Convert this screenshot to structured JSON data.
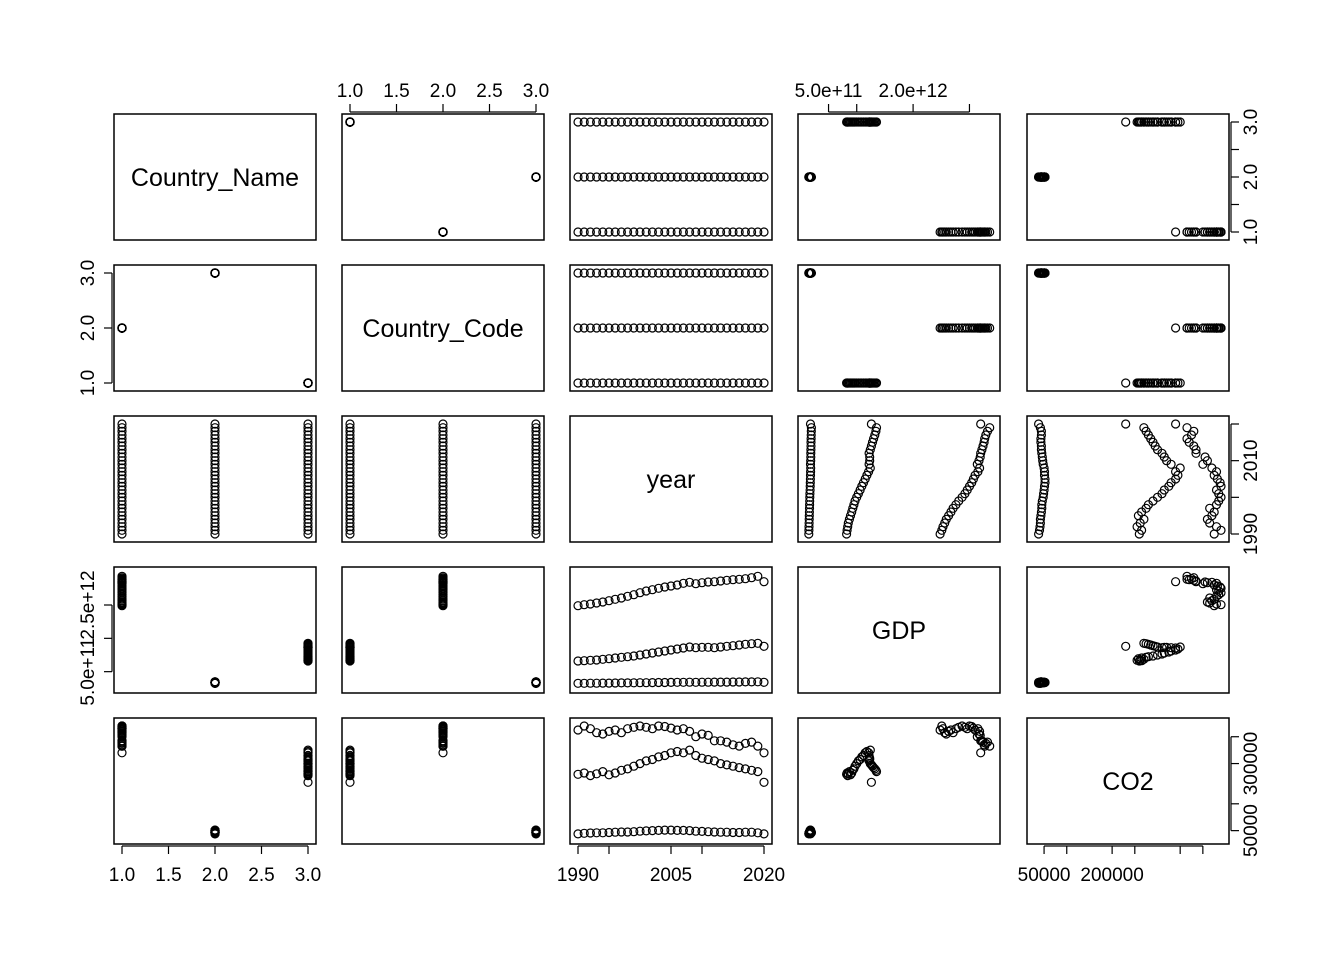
{
  "chart_data": {
    "type": "scatter",
    "subtype": "scatterplot-matrix",
    "variables": [
      "Country_Name",
      "Country_Code",
      "year",
      "GDP",
      "CO2"
    ],
    "axis_ranges": {
      "Country_Name": [
        1,
        3
      ],
      "Country_Code": [
        1,
        3
      ],
      "year": [
        1990,
        2020
      ],
      "GDP": [
        100000000000,
        3400000000000
      ],
      "CO2": [
        30000,
        440000
      ]
    },
    "tick_labels": {
      "Country_Name": [
        "1.0",
        "1.5",
        "2.0",
        "2.5",
        "3.0"
      ],
      "Country_Code": [
        "1.0",
        "2.0",
        "3.0"
      ],
      "year": [
        "1990",
        "2005",
        "2020"
      ],
      "year_right": [
        "1990",
        "2010"
      ],
      "GDP_top": [
        "5.0e+11",
        "2.0e+12"
      ],
      "GDP_left": [
        "5.0e+11",
        "2.5e+12"
      ],
      "CO2_bottom": [
        "50000",
        "200000"
      ],
      "CO2_right": [
        "50000",
        "300000"
      ]
    },
    "grid": false,
    "legend": "none",
    "series": [
      {
        "country_name": 1,
        "country_code": 2,
        "year": [
          1990,
          1991,
          1992,
          1993,
          1994,
          1995,
          1996,
          1997,
          1998,
          1999,
          2000,
          2001,
          2002,
          2003,
          2004,
          2005,
          2006,
          2007,
          2008,
          2009,
          2010,
          2011,
          2012,
          2013,
          2014,
          2015,
          2016,
          2017,
          2018,
          2019,
          2020
        ],
        "gdp": [
          2480000000000.0,
          2510000000000.0,
          2530000000000.0,
          2560000000000.0,
          2590000000000.0,
          2630000000000.0,
          2670000000000.0,
          2710000000000.0,
          2760000000000.0,
          2810000000000.0,
          2870000000000.0,
          2920000000000.0,
          2960000000000.0,
          3000000000000.0,
          3040000000000.0,
          3070000000000.0,
          3100000000000.0,
          3150000000000.0,
          3180000000000.0,
          3140000000000.0,
          3170000000000.0,
          3190000000000.0,
          3200000000000.0,
          3220000000000.0,
          3240000000000.0,
          3260000000000.0,
          3270000000000.0,
          3290000000000.0,
          3320000000000.0,
          3360000000000.0,
          3200000000000.0
        ],
        "co2": [
          425000,
          440000,
          430000,
          415000,
          410000,
          420000,
          425000,
          415000,
          430000,
          435000,
          440000,
          435000,
          430000,
          440000,
          438000,
          432000,
          425000,
          430000,
          420000,
          400000,
          410000,
          405000,
          385000,
          385000,
          380000,
          370000,
          365000,
          375000,
          380000,
          365000,
          340000
        ]
      },
      {
        "country_name": 2,
        "country_code": 3,
        "year": [
          1990,
          1991,
          1992,
          1993,
          1994,
          1995,
          1996,
          1997,
          1998,
          1999,
          2000,
          2001,
          2002,
          2003,
          2004,
          2005,
          2006,
          2007,
          2008,
          2009,
          2010,
          2011,
          2012,
          2013,
          2014,
          2015,
          2016,
          2017,
          2018,
          2019,
          2020
        ],
        "gdp": [
          150000000000.0,
          152000000000.0,
          153000000000.0,
          155000000000.0,
          157000000000.0,
          158000000000.0,
          160000000000.0,
          162000000000.0,
          163000000000.0,
          165000000000.0,
          168000000000.0,
          170000000000.0,
          172000000000.0,
          174000000000.0,
          176000000000.0,
          178000000000.0,
          180000000000.0,
          182000000000.0,
          184000000000.0,
          180000000000.0,
          183000000000.0,
          185000000000.0,
          186000000000.0,
          187000000000.0,
          188000000000.0,
          189000000000.0,
          190000000000.0,
          192000000000.0,
          194000000000.0,
          195000000000.0,
          180000000000.0
        ],
        "co2": [
          38000,
          40000,
          41000,
          42000,
          42000,
          43000,
          44000,
          45000,
          45000,
          46000,
          48000,
          49000,
          50000,
          51000,
          52000,
          52000,
          51000,
          51000,
          50000,
          48000,
          47000,
          46000,
          45000,
          44000,
          44000,
          43000,
          43000,
          44000,
          44000,
          42000,
          38000
        ]
      },
      {
        "country_name": 3,
        "country_code": 1,
        "year": [
          1990,
          1991,
          1992,
          1993,
          1994,
          1995,
          1996,
          1997,
          1998,
          1999,
          2000,
          2001,
          2002,
          2003,
          2004,
          2005,
          2006,
          2007,
          2008,
          2009,
          2010,
          2011,
          2012,
          2013,
          2014,
          2015,
          2016,
          2017,
          2018,
          2019,
          2020
        ],
        "gdp": [
          820000000000.0,
          830000000000.0,
          840000000000.0,
          850000000000.0,
          870000000000.0,
          890000000000.0,
          910000000000.0,
          930000000000.0,
          950000000000.0,
          970000000000.0,
          1000000000000.0,
          1030000000000.0,
          1060000000000.0,
          1090000000000.0,
          1120000000000.0,
          1150000000000.0,
          1180000000000.0,
          1210000000000.0,
          1240000000000.0,
          1220000000000.0,
          1230000000000.0,
          1230000000000.0,
          1220000000000.0,
          1240000000000.0,
          1260000000000.0,
          1280000000000.0,
          1300000000000.0,
          1320000000000.0,
          1340000000000.0,
          1350000000000.0,
          1260000000000.0
        ],
        "co2": [
          260000,
          265000,
          255000,
          262000,
          270000,
          258000,
          265000,
          275000,
          280000,
          290000,
          300000,
          310000,
          315000,
          325000,
          330000,
          340000,
          345000,
          340000,
          350000,
          330000,
          320000,
          315000,
          310000,
          300000,
          295000,
          290000,
          285000,
          280000,
          275000,
          270000,
          230000
        ]
      }
    ]
  }
}
